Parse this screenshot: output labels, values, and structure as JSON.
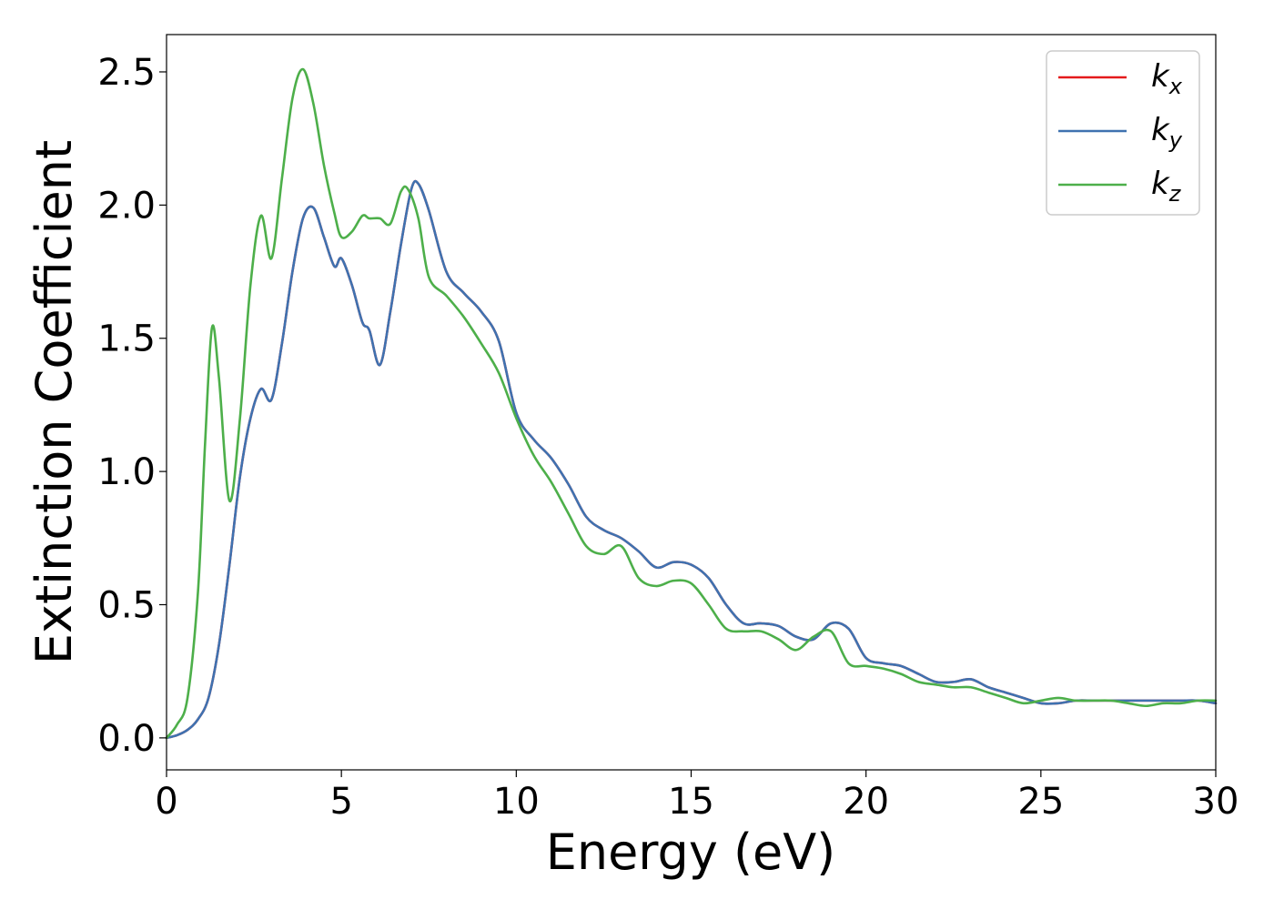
{
  "chart_data": {
    "type": "line",
    "xlabel": "Energy (eV)",
    "ylabel": "Extinction Coefficient",
    "xlim": [
      0,
      30
    ],
    "ylim": [
      -0.12,
      2.64
    ],
    "xticks": [
      "0",
      "5",
      "10",
      "15",
      "20",
      "25",
      "30"
    ],
    "yticks": [
      "0.0",
      "0.5",
      "1.0",
      "1.5",
      "2.0",
      "2.5"
    ],
    "grid": false,
    "legend_position": "top-right",
    "series": [
      {
        "name": "k_x",
        "label_main": "k",
        "label_sub": "x",
        "color": "#e41a1c",
        "x": [
          0,
          0.3,
          0.6,
          0.9,
          1.2,
          1.5,
          1.8,
          2.1,
          2.4,
          2.7,
          3.0,
          3.3,
          3.6,
          3.9,
          4.2,
          4.5,
          4.8,
          5.0,
          5.3,
          5.6,
          5.8,
          6.1,
          6.4,
          6.7,
          7.0,
          7.2,
          7.5,
          8.0,
          8.5,
          9.0,
          9.5,
          10.0,
          10.5,
          11.0,
          11.5,
          12.0,
          12.5,
          13.0,
          13.5,
          14.0,
          14.5,
          15.0,
          15.5,
          16.0,
          16.5,
          17.0,
          17.5,
          18.0,
          18.5,
          19.0,
          19.5,
          20.0,
          20.5,
          21.0,
          21.5,
          22.0,
          22.5,
          23.0,
          23.5,
          24.0,
          24.5,
          25.0,
          25.5,
          26.0,
          26.5,
          27.0,
          27.5,
          28.0,
          28.5,
          29.0,
          29.5,
          30.0
        ],
        "y": [
          0.0,
          0.01,
          0.03,
          0.07,
          0.15,
          0.35,
          0.65,
          0.98,
          1.2,
          1.31,
          1.27,
          1.48,
          1.75,
          1.95,
          1.99,
          1.88,
          1.77,
          1.8,
          1.7,
          1.56,
          1.53,
          1.4,
          1.6,
          1.85,
          2.06,
          2.08,
          1.98,
          1.75,
          1.67,
          1.6,
          1.49,
          1.22,
          1.12,
          1.05,
          0.95,
          0.83,
          0.78,
          0.75,
          0.7,
          0.64,
          0.66,
          0.65,
          0.6,
          0.5,
          0.43,
          0.43,
          0.42,
          0.38,
          0.37,
          0.43,
          0.41,
          0.3,
          0.28,
          0.27,
          0.24,
          0.21,
          0.21,
          0.22,
          0.19,
          0.17,
          0.15,
          0.13,
          0.13,
          0.14,
          0.14,
          0.14,
          0.14,
          0.14,
          0.14,
          0.14,
          0.14,
          0.13
        ]
      },
      {
        "name": "k_y",
        "label_main": "k",
        "label_sub": "y",
        "color": "#3f72b0",
        "x": [
          0,
          0.3,
          0.6,
          0.9,
          1.2,
          1.5,
          1.8,
          2.1,
          2.4,
          2.7,
          3.0,
          3.3,
          3.6,
          3.9,
          4.2,
          4.5,
          4.8,
          5.0,
          5.3,
          5.6,
          5.8,
          6.1,
          6.4,
          6.7,
          7.0,
          7.2,
          7.5,
          8.0,
          8.5,
          9.0,
          9.5,
          10.0,
          10.5,
          11.0,
          11.5,
          12.0,
          12.5,
          13.0,
          13.5,
          14.0,
          14.5,
          15.0,
          15.5,
          16.0,
          16.5,
          17.0,
          17.5,
          18.0,
          18.5,
          19.0,
          19.5,
          20.0,
          20.5,
          21.0,
          21.5,
          22.0,
          22.5,
          23.0,
          23.5,
          24.0,
          24.5,
          25.0,
          25.5,
          26.0,
          26.5,
          27.0,
          27.5,
          28.0,
          28.5,
          29.0,
          29.5,
          30.0
        ],
        "y": [
          0.0,
          0.01,
          0.03,
          0.07,
          0.15,
          0.35,
          0.65,
          0.98,
          1.2,
          1.31,
          1.27,
          1.48,
          1.75,
          1.95,
          1.99,
          1.88,
          1.77,
          1.8,
          1.7,
          1.56,
          1.53,
          1.4,
          1.6,
          1.85,
          2.06,
          2.08,
          1.98,
          1.75,
          1.67,
          1.6,
          1.49,
          1.22,
          1.12,
          1.05,
          0.95,
          0.83,
          0.78,
          0.75,
          0.7,
          0.64,
          0.66,
          0.65,
          0.6,
          0.5,
          0.43,
          0.43,
          0.42,
          0.38,
          0.37,
          0.43,
          0.41,
          0.3,
          0.28,
          0.27,
          0.24,
          0.21,
          0.21,
          0.22,
          0.19,
          0.17,
          0.15,
          0.13,
          0.13,
          0.14,
          0.14,
          0.14,
          0.14,
          0.14,
          0.14,
          0.14,
          0.14,
          0.13
        ]
      },
      {
        "name": "k_z",
        "label_main": "k",
        "label_sub": "z",
        "color": "#4daf4a",
        "x": [
          0,
          0.3,
          0.6,
          0.9,
          1.1,
          1.3,
          1.5,
          1.8,
          2.1,
          2.4,
          2.7,
          3.0,
          3.3,
          3.6,
          3.9,
          4.2,
          4.5,
          4.8,
          5.0,
          5.3,
          5.6,
          5.8,
          6.1,
          6.4,
          6.7,
          6.9,
          7.2,
          7.5,
          8.0,
          8.5,
          9.0,
          9.5,
          10.0,
          10.5,
          11.0,
          11.5,
          12.0,
          12.5,
          13.0,
          13.5,
          14.0,
          14.5,
          15.0,
          15.5,
          16.0,
          16.5,
          17.0,
          17.5,
          18.0,
          18.5,
          19.0,
          19.5,
          20.0,
          20.5,
          21.0,
          21.5,
          22.0,
          22.5,
          23.0,
          23.5,
          24.0,
          24.5,
          25.0,
          25.5,
          26.0,
          26.5,
          27.0,
          27.5,
          28.0,
          28.5,
          29.0,
          29.5,
          30.0
        ],
        "y": [
          0.0,
          0.05,
          0.15,
          0.55,
          1.1,
          1.54,
          1.35,
          0.89,
          1.2,
          1.7,
          1.96,
          1.8,
          2.1,
          2.4,
          2.51,
          2.38,
          2.15,
          1.97,
          1.88,
          1.9,
          1.96,
          1.95,
          1.95,
          1.93,
          2.05,
          2.06,
          1.95,
          1.73,
          1.66,
          1.58,
          1.48,
          1.37,
          1.2,
          1.06,
          0.96,
          0.84,
          0.72,
          0.69,
          0.72,
          0.6,
          0.57,
          0.59,
          0.58,
          0.5,
          0.41,
          0.4,
          0.4,
          0.37,
          0.33,
          0.38,
          0.4,
          0.28,
          0.27,
          0.26,
          0.24,
          0.21,
          0.2,
          0.19,
          0.19,
          0.17,
          0.15,
          0.13,
          0.14,
          0.15,
          0.14,
          0.14,
          0.14,
          0.13,
          0.12,
          0.13,
          0.13,
          0.14,
          0.14
        ]
      }
    ]
  }
}
